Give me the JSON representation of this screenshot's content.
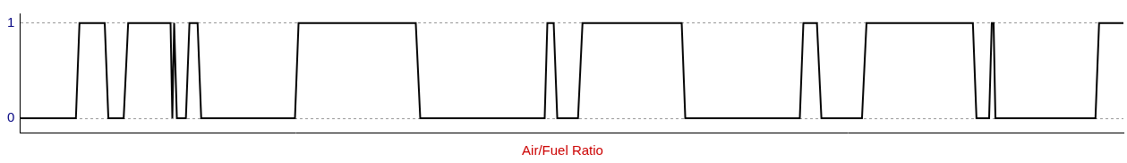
{
  "chart_data": {
    "type": "line",
    "title": "Air/Fuel Ratio",
    "x": [
      35,
      97,
      101,
      129,
      133,
      150,
      155,
      202,
      204,
      206,
      209,
      219,
      223,
      232,
      236,
      340,
      344,
      474,
      479,
      617,
      620,
      627,
      631,
      654,
      659,
      769,
      773,
      900,
      904,
      919,
      924,
      969,
      974,
      1092,
      1096,
      1110,
      1113,
      1115,
      1117,
      1228,
      1232,
      1259
    ],
    "series": [
      {
        "name": "Air/Fuel Ratio",
        "color": "#000000",
        "line_style": "solid",
        "values": [
          0,
          0,
          1,
          1,
          0,
          0,
          1,
          1,
          0,
          1,
          0,
          0,
          1,
          1,
          0,
          0,
          1,
          1,
          0,
          0,
          1,
          1,
          0,
          0,
          1,
          1,
          0,
          0,
          1,
          1,
          0,
          0,
          1,
          1,
          0,
          0,
          1,
          1,
          0,
          0,
          1,
          1
        ]
      }
    ],
    "xlim": [
      35,
      1259
    ],
    "ylim": [
      -0.15,
      1.1
    ],
    "yticks": [
      0,
      1
    ],
    "grid": true,
    "tick_labels": "y"
  }
}
